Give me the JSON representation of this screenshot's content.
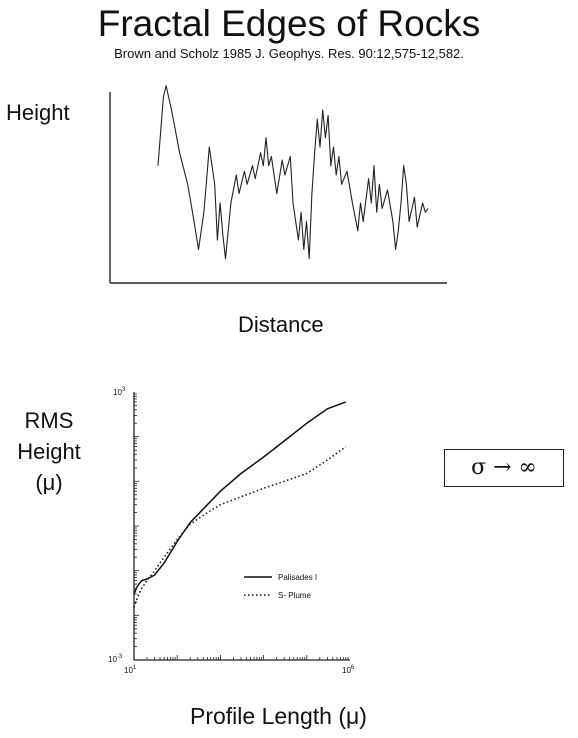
{
  "title": "Fractal Edges of Rocks",
  "subtitle": "Brown and Scholz   1985   J. Geophys. Res. 90:12,575-12,582.",
  "formula": "σ → ∞",
  "chart_data": [
    {
      "type": "line",
      "ylabel": "Height",
      "xlabel": "Distance",
      "grid": false,
      "legend": "none",
      "series": [
        {
          "values": [
            [
              0.0,
              0.55
            ],
            [
              0.02,
              0.92
            ],
            [
              0.03,
              0.98
            ],
            [
              0.05,
              0.85
            ],
            [
              0.08,
              0.62
            ],
            [
              0.11,
              0.45
            ],
            [
              0.13,
              0.28
            ],
            [
              0.15,
              0.1
            ],
            [
              0.17,
              0.3
            ],
            [
              0.19,
              0.65
            ],
            [
              0.21,
              0.45
            ],
            [
              0.22,
              0.15
            ],
            [
              0.23,
              0.35
            ],
            [
              0.24,
              0.18
            ],
            [
              0.25,
              0.05
            ],
            [
              0.27,
              0.35
            ],
            [
              0.29,
              0.5
            ],
            [
              0.3,
              0.4
            ],
            [
              0.32,
              0.52
            ],
            [
              0.33,
              0.45
            ],
            [
              0.35,
              0.55
            ],
            [
              0.36,
              0.48
            ],
            [
              0.38,
              0.62
            ],
            [
              0.39,
              0.55
            ],
            [
              0.4,
              0.7
            ],
            [
              0.41,
              0.55
            ],
            [
              0.42,
              0.6
            ],
            [
              0.44,
              0.4
            ],
            [
              0.46,
              0.58
            ],
            [
              0.47,
              0.5
            ],
            [
              0.49,
              0.6
            ],
            [
              0.5,
              0.35
            ],
            [
              0.52,
              0.15
            ],
            [
              0.53,
              0.3
            ],
            [
              0.54,
              0.1
            ],
            [
              0.55,
              0.25
            ],
            [
              0.56,
              0.05
            ],
            [
              0.57,
              0.4
            ],
            [
              0.58,
              0.62
            ],
            [
              0.59,
              0.8
            ],
            [
              0.6,
              0.65
            ],
            [
              0.61,
              0.85
            ],
            [
              0.62,
              0.7
            ],
            [
              0.63,
              0.82
            ],
            [
              0.64,
              0.55
            ],
            [
              0.65,
              0.65
            ],
            [
              0.66,
              0.5
            ],
            [
              0.67,
              0.6
            ],
            [
              0.68,
              0.45
            ],
            [
              0.7,
              0.52
            ],
            [
              0.72,
              0.35
            ],
            [
              0.74,
              0.2
            ],
            [
              0.75,
              0.35
            ],
            [
              0.76,
              0.25
            ],
            [
              0.78,
              0.48
            ],
            [
              0.79,
              0.35
            ],
            [
              0.8,
              0.55
            ],
            [
              0.81,
              0.3
            ],
            [
              0.82,
              0.45
            ],
            [
              0.83,
              0.32
            ],
            [
              0.85,
              0.42
            ],
            [
              0.87,
              0.25
            ],
            [
              0.88,
              0.1
            ],
            [
              0.89,
              0.2
            ],
            [
              0.9,
              0.35
            ],
            [
              0.91,
              0.55
            ],
            [
              0.92,
              0.45
            ],
            [
              0.93,
              0.25
            ],
            [
              0.95,
              0.38
            ],
            [
              0.96,
              0.22
            ],
            [
              0.98,
              0.35
            ],
            [
              0.99,
              0.3
            ],
            [
              1.0,
              0.32
            ]
          ]
        }
      ]
    },
    {
      "type": "line",
      "ylabel_lines": [
        "RMS",
        "Height",
        "(μ)"
      ],
      "xlabel": "Profile Length (μ)",
      "x_scale": "log",
      "y_scale": "log",
      "xlim": [
        10,
        1000000
      ],
      "ylim": [
        0.001,
        1000
      ],
      "ticks": {
        "x_left": {
          "base": "10",
          "exp": "1"
        },
        "x_right": {
          "base": "10",
          "exp": "6"
        },
        "y_top": {
          "base": "10",
          "exp": "3"
        },
        "y_bottom": {
          "base": "10",
          "exp": "-3"
        }
      },
      "grid": false,
      "legend": "center-right",
      "series": [
        {
          "name": "Palisades I",
          "style": "solid",
          "x": [
            10,
            12,
            15,
            20,
            30,
            50,
            100,
            200,
            500,
            1000,
            3000,
            10000,
            30000,
            100000,
            300000,
            800000
          ],
          "y": [
            0.03,
            0.045,
            0.06,
            0.065,
            0.08,
            0.15,
            0.45,
            1.2,
            3.0,
            6.0,
            15,
            35,
            80,
            200,
            420,
            600
          ]
        },
        {
          "name": "S- Plume",
          "style": "dotted",
          "x": [
            10,
            12,
            15,
            20,
            30,
            50,
            100,
            200,
            500,
            1000,
            3000,
            10000,
            30000,
            100000,
            300000,
            800000
          ],
          "y": [
            0.015,
            0.025,
            0.04,
            0.06,
            0.1,
            0.2,
            0.5,
            1.1,
            2.0,
            3.0,
            4.5,
            7.0,
            10,
            15,
            30,
            60
          ]
        }
      ]
    }
  ]
}
